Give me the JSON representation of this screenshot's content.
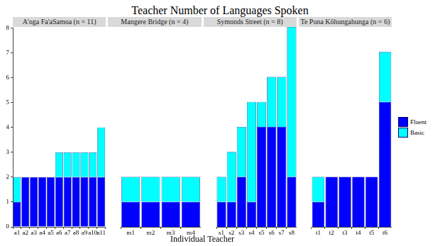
{
  "chart_data": {
    "type": "bar",
    "title": "Teacher Number of Languages Spoken",
    "x_label": "Individual Teacher",
    "stacked": true,
    "grid": false,
    "legend": "right",
    "ylim": [
      0,
      8
    ],
    "yticks": [
      0,
      1,
      2,
      3,
      4,
      5,
      6,
      7,
      8
    ],
    "panels": [
      {
        "title": "A'oga Fa'aSamoa (n = 11)",
        "categories": [
          "a1",
          "a2",
          "a3",
          "a4",
          "a5",
          "a6",
          "a7",
          "a8",
          "a9",
          "a10",
          "a11"
        ],
        "series": [
          {
            "name": "Fluent",
            "color": "#0000ff",
            "values": [
              1,
              2,
              2,
              2,
              2,
              2,
              2,
              2,
              2,
              2,
              2
            ]
          },
          {
            "name": "Basic",
            "color": "#00ffff",
            "values": [
              1,
              0,
              0,
              0,
              0,
              1,
              1,
              1,
              1,
              1,
              2
            ]
          }
        ]
      },
      {
        "title": "Mangere Bridge (n = 4)",
        "categories": [
          "m1",
          "m2",
          "m3",
          "m4"
        ],
        "series": [
          {
            "name": "Fluent",
            "color": "#0000ff",
            "values": [
              1,
              1,
              1,
              1
            ]
          },
          {
            "name": "Basic",
            "color": "#00ffff",
            "values": [
              1,
              1,
              1,
              1
            ]
          }
        ]
      },
      {
        "title": "Symonds Street (n = 8)",
        "categories": [
          "s1",
          "s2",
          "s3",
          "s4",
          "s5",
          "s6",
          "s7",
          "s8"
        ],
        "series": [
          {
            "name": "Fluent",
            "color": "#0000ff",
            "values": [
              1,
              1,
              2,
              1,
              4,
              4,
              4,
              2
            ]
          },
          {
            "name": "Basic",
            "color": "#00ffff",
            "values": [
              1,
              2,
              2,
              4,
              1,
              2,
              2,
              6
            ]
          }
        ]
      },
      {
        "title": "Te Puna Kōhungahunga (n = 6)",
        "categories": [
          "t1",
          "t2",
          "t3",
          "t4",
          "t5",
          "t6"
        ],
        "series": [
          {
            "name": "Fluent",
            "color": "#0000ff",
            "values": [
              1,
              2,
              2,
              2,
              2,
              5
            ]
          },
          {
            "name": "Basic",
            "color": "#00ffff",
            "values": [
              1,
              0,
              0,
              0,
              0,
              2
            ]
          }
        ]
      }
    ]
  }
}
